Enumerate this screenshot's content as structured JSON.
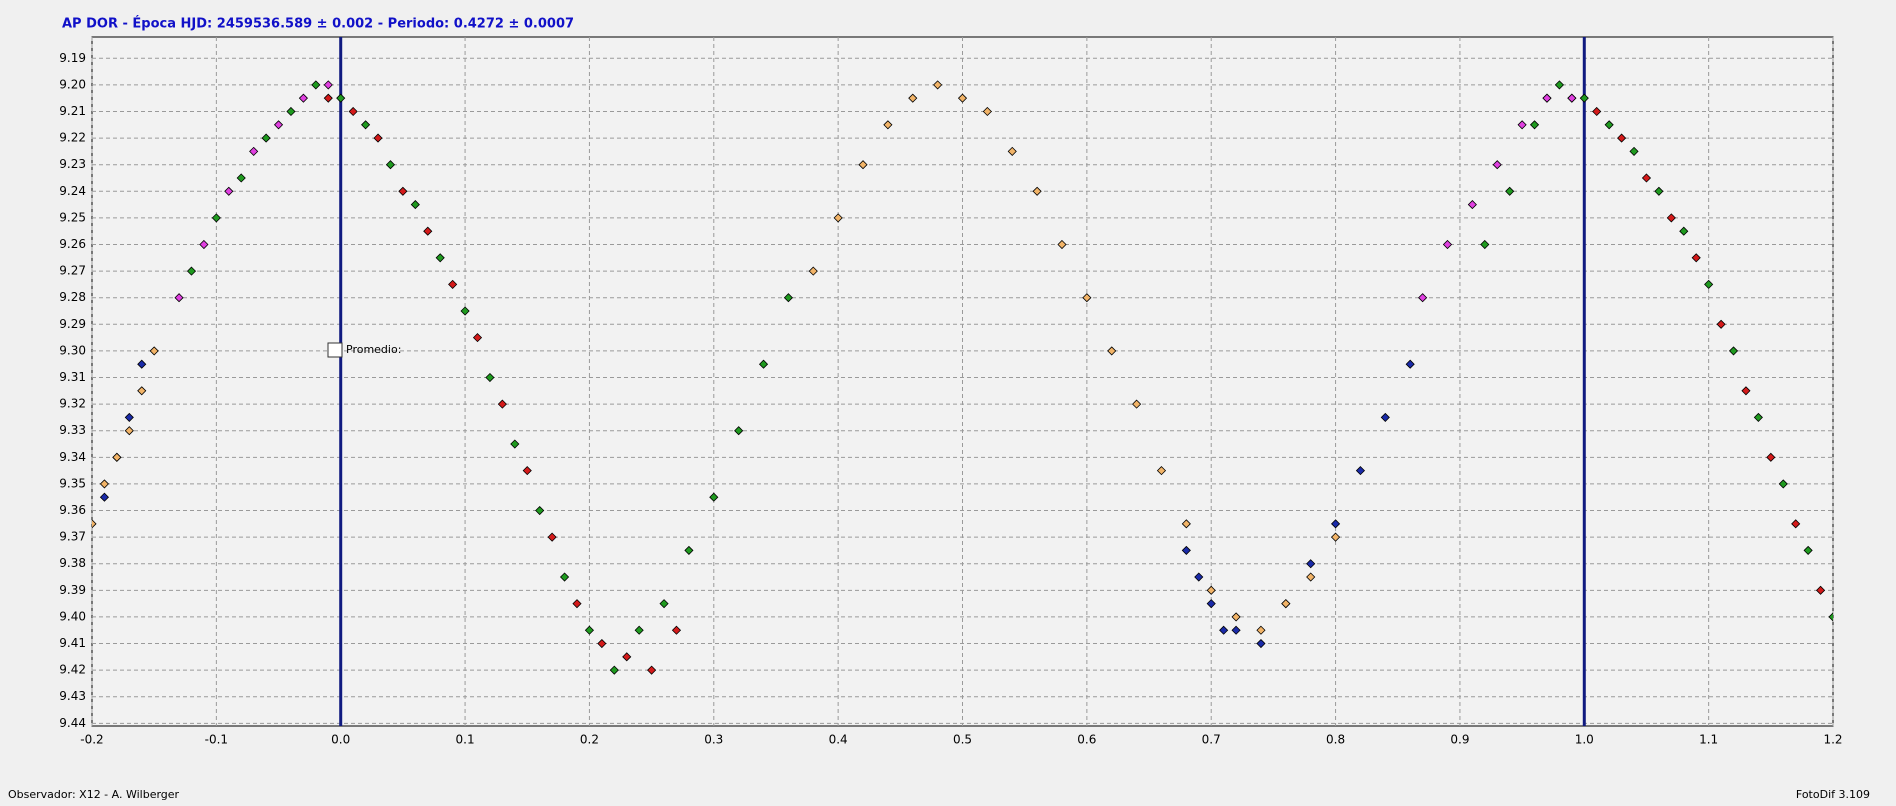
{
  "chart_data": {
    "type": "scatter",
    "title": "AP DOR  -  Época HJD: 2459536.589 ± 0.002  -  Periodo: 0.4272 ± 0.0007",
    "xlim": [
      -0.2,
      1.2
    ],
    "ylim": [
      9.182,
      9.441
    ],
    "y_inverted": true,
    "grid": true,
    "xticks": [
      -0.2,
      -0.1,
      {
        "value": 0,
        "label": "0.0"
      },
      0.1,
      0.2,
      0.3,
      0.4,
      0.5,
      0.6,
      0.7,
      0.8,
      0.9,
      {
        "value": 1,
        "label": "1.0"
      },
      1.1,
      1.2
    ],
    "yticks": [
      9.19,
      {
        "value": 9.2,
        "label": "9.20"
      },
      9.21,
      9.22,
      9.23,
      9.24,
      9.25,
      9.26,
      9.27,
      9.28,
      9.29,
      {
        "value": 9.3,
        "label": "9.30"
      },
      9.31,
      9.32,
      9.33,
      9.34,
      9.35,
      9.36,
      9.37,
      9.38,
      9.39,
      {
        "value": 9.4,
        "label": "9.40"
      },
      9.41,
      9.42,
      9.43,
      9.44
    ],
    "vlines": [
      0,
      1
    ],
    "vline_color": "#101a80",
    "checkbox_label": "Promedio:",
    "series": [
      {
        "color": "#1f9a1f",
        "x": [
          -0.12,
          -0.1,
          -0.08,
          -0.06,
          -0.04,
          -0.02,
          0.0,
          0.02,
          0.04,
          0.06,
          0.08,
          0.1,
          0.12,
          0.14,
          0.16,
          0.18,
          0.2,
          0.22,
          0.24,
          0.26,
          0.28,
          0.3,
          0.32,
          0.34,
          0.36,
          0.92,
          0.94,
          0.96,
          0.98,
          1.0,
          1.02,
          1.04,
          1.06,
          1.08,
          1.1,
          1.12,
          1.14,
          1.16,
          1.18,
          1.2
        ],
        "values": [
          9.27,
          9.25,
          9.235,
          9.22,
          9.21,
          9.2,
          9.205,
          9.215,
          9.23,
          9.245,
          9.265,
          9.285,
          9.31,
          9.335,
          9.36,
          9.385,
          9.405,
          9.42,
          9.405,
          9.395,
          9.375,
          9.355,
          9.33,
          9.305,
          9.28,
          9.26,
          9.24,
          9.215,
          9.2,
          9.205,
          9.215,
          9.225,
          9.24,
          9.255,
          9.275,
          9.3,
          9.325,
          9.35,
          9.375,
          9.4
        ]
      },
      {
        "color": "#d41a1a",
        "x": [
          -0.01,
          0.01,
          0.03,
          0.05,
          0.07,
          0.09,
          0.11,
          0.13,
          0.15,
          0.17,
          0.19,
          0.21,
          0.23,
          0.25,
          0.27,
          0.97,
          0.99,
          1.01,
          1.03,
          1.05,
          1.07,
          1.09,
          1.11,
          1.13,
          1.15,
          1.17,
          1.19
        ],
        "values": [
          9.205,
          9.21,
          9.22,
          9.24,
          9.255,
          9.275,
          9.295,
          9.32,
          9.345,
          9.37,
          9.395,
          9.41,
          9.415,
          9.42,
          9.405,
          9.205,
          9.205,
          9.21,
          9.22,
          9.235,
          9.25,
          9.265,
          9.29,
          9.315,
          9.34,
          9.365,
          9.39
        ]
      },
      {
        "color": "#e040e0",
        "x": [
          -0.13,
          -0.11,
          -0.09,
          -0.07,
          -0.05,
          -0.03,
          -0.01,
          0.87,
          0.89,
          0.91,
          0.93,
          0.95,
          0.97,
          0.99
        ],
        "values": [
          9.28,
          9.26,
          9.24,
          9.225,
          9.215,
          9.205,
          9.2,
          9.28,
          9.26,
          9.245,
          9.23,
          9.215,
          9.205,
          9.205
        ]
      },
      {
        "color": "#1a2aa8",
        "x": [
          -0.19,
          -0.18,
          -0.17,
          -0.16,
          0.68,
          0.69,
          0.7,
          0.71,
          0.72,
          0.74,
          0.76,
          0.78,
          0.8,
          0.82,
          0.84,
          0.86
        ],
        "values": [
          9.355,
          9.34,
          9.325,
          9.305,
          9.375,
          9.385,
          9.395,
          9.405,
          9.405,
          9.41,
          9.395,
          9.38,
          9.365,
          9.345,
          9.325,
          9.305
        ]
      },
      {
        "color": "#f2b468",
        "x": [
          -0.2,
          -0.19,
          -0.18,
          -0.17,
          -0.16,
          -0.15,
          0.38,
          0.4,
          0.42,
          0.44,
          0.46,
          0.48,
          0.5,
          0.52,
          0.54,
          0.56,
          0.58,
          0.6,
          0.62,
          0.64,
          0.66,
          0.68,
          0.7,
          0.72,
          0.74,
          0.76,
          0.78,
          0.8
        ],
        "values": [
          9.365,
          9.35,
          9.34,
          9.33,
          9.315,
          9.3,
          9.27,
          9.25,
          9.23,
          9.215,
          9.205,
          9.2,
          9.205,
          9.21,
          9.225,
          9.24,
          9.26,
          9.28,
          9.3,
          9.32,
          9.345,
          9.365,
          9.39,
          9.4,
          9.405,
          9.395,
          9.385,
          9.37
        ]
      }
    ]
  },
  "status_bar": {
    "left": "Observador: X12 - A. Wilberger",
    "right": "FotoDif 3.109"
  }
}
